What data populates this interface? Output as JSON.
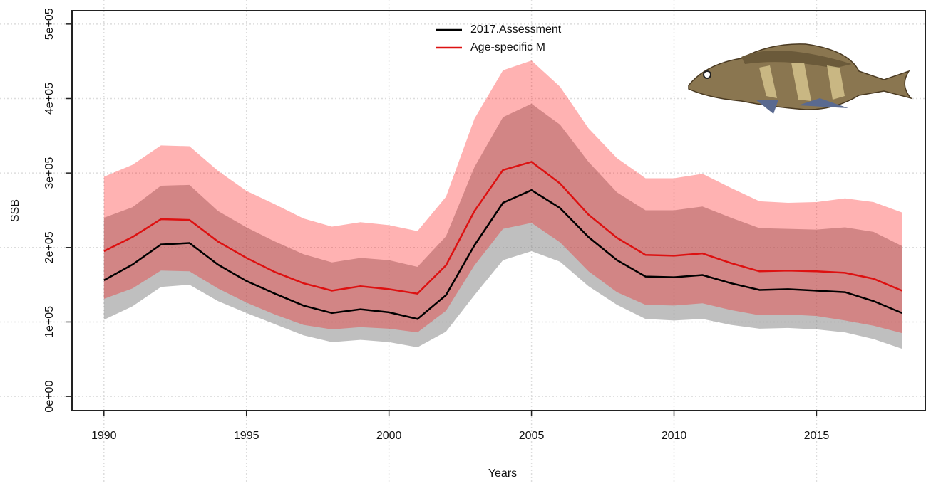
{
  "chart_data": {
    "type": "band-line",
    "xlabel": "Years",
    "ylabel": "SSB",
    "x": [
      1990,
      1991,
      1992,
      1993,
      1994,
      1995,
      1996,
      1997,
      1998,
      1999,
      2000,
      2001,
      2002,
      2003,
      2004,
      2005,
      2006,
      2007,
      2008,
      2009,
      2010,
      2011,
      2012,
      2013,
      2014,
      2015,
      2016,
      2017,
      2018
    ],
    "series": [
      {
        "name": "2017.Assessment",
        "color": "#000000",
        "band_color": "#808080",
        "values": [
          156000,
          177000,
          204000,
          206000,
          177000,
          155000,
          138000,
          122000,
          112000,
          117000,
          113000,
          104000,
          136000,
          203000,
          260000,
          277000,
          253000,
          214000,
          183000,
          161000,
          160000,
          163000,
          152000,
          143000,
          144000,
          142000,
          140000,
          128000,
          112000
        ],
        "lower": [
          103000,
          121000,
          147000,
          150000,
          128000,
          112000,
          97000,
          82000,
          73000,
          76000,
          73000,
          66000,
          87000,
          136000,
          183000,
          195000,
          181000,
          148000,
          123000,
          104000,
          102000,
          104000,
          96000,
          91000,
          92000,
          90000,
          86000,
          77000,
          64000
        ],
        "upper": [
          240000,
          254000,
          283000,
          284000,
          249000,
          227000,
          208000,
          191000,
          180000,
          186000,
          183000,
          174000,
          215000,
          308000,
          375000,
          393000,
          365000,
          315000,
          274000,
          250000,
          250000,
          255000,
          240000,
          226000,
          225000,
          224000,
          227000,
          221000,
          202000
        ]
      },
      {
        "name": "Age-specific M",
        "color": "#dd1111",
        "band_color": "#ff0000",
        "values": [
          195000,
          214000,
          238000,
          237000,
          208000,
          186000,
          167000,
          152000,
          142000,
          148000,
          144000,
          138000,
          176000,
          249000,
          304000,
          315000,
          286000,
          244000,
          213000,
          190000,
          189000,
          192000,
          179000,
          168000,
          169000,
          168000,
          166000,
          158000,
          142000
        ],
        "lower": [
          131000,
          145000,
          169000,
          168000,
          145000,
          126000,
          110000,
          96000,
          90000,
          93000,
          91000,
          86000,
          115000,
          176000,
          225000,
          233000,
          207000,
          168000,
          140000,
          123000,
          122000,
          125000,
          116000,
          109000,
          110000,
          108000,
          102000,
          95000,
          85000
        ],
        "upper": [
          295000,
          311000,
          337000,
          336000,
          303000,
          276000,
          258000,
          239000,
          228000,
          234000,
          230000,
          222000,
          268000,
          373000,
          438000,
          451000,
          416000,
          360000,
          320000,
          293000,
          293000,
          299000,
          280000,
          262000,
          260000,
          261000,
          266000,
          261000,
          247000
        ]
      }
    ],
    "xlim": [
      1988.88,
      2018.84
    ],
    "xticks": [
      1990,
      1995,
      2000,
      2005,
      2010,
      2015
    ],
    "ylim": [
      -19000,
      518000
    ],
    "yticks": [
      {
        "value": 0,
        "label": "0e+00"
      },
      {
        "value": 100000,
        "label": "1e+05"
      },
      {
        "value": 200000,
        "label": "2e+05"
      },
      {
        "value": 300000,
        "label": "3e+05"
      },
      {
        "value": 400000,
        "label": "4e+05"
      },
      {
        "value": 500000,
        "label": "5e+05"
      }
    ],
    "grid": true,
    "legend": "top"
  }
}
